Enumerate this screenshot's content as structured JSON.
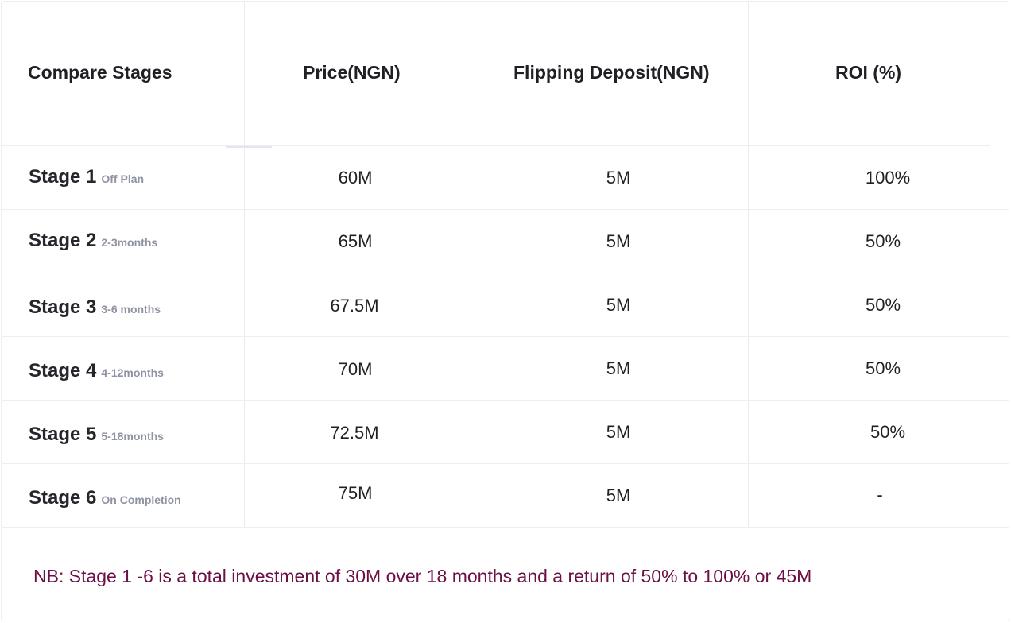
{
  "headers": {
    "stage": "Compare Stages",
    "price": "Price(NGN)",
    "deposit": "Flipping Deposit(NGN)",
    "roi": "ROI (%)"
  },
  "rows": [
    {
      "stage": "Stage 1",
      "period": "Off Plan",
      "price": "60M",
      "deposit": "5M",
      "roi": "100%"
    },
    {
      "stage": "Stage 2",
      "period": "2-3months",
      "price": "65M",
      "deposit": "5M",
      "roi": "50%"
    },
    {
      "stage": "Stage 3",
      "period": "3-6 months",
      "price": "67.5M",
      "deposit": "5M",
      "roi": "50%"
    },
    {
      "stage": "Stage 4",
      "period": "4-12months",
      "price": "70M",
      "deposit": "5M",
      "roi": "50%"
    },
    {
      "stage": "Stage 5",
      "period": "5-18months",
      "price": "72.5M",
      "deposit": "5M",
      "roi": "50%"
    },
    {
      "stage": "Stage 6",
      "period": "On Completion",
      "price": "75M",
      "deposit": "5M",
      "roi": "-"
    }
  ],
  "note": "NB: Stage 1 -6 is a total investment of 30M over 18 months and a return of 50% to 100% or 45M"
}
